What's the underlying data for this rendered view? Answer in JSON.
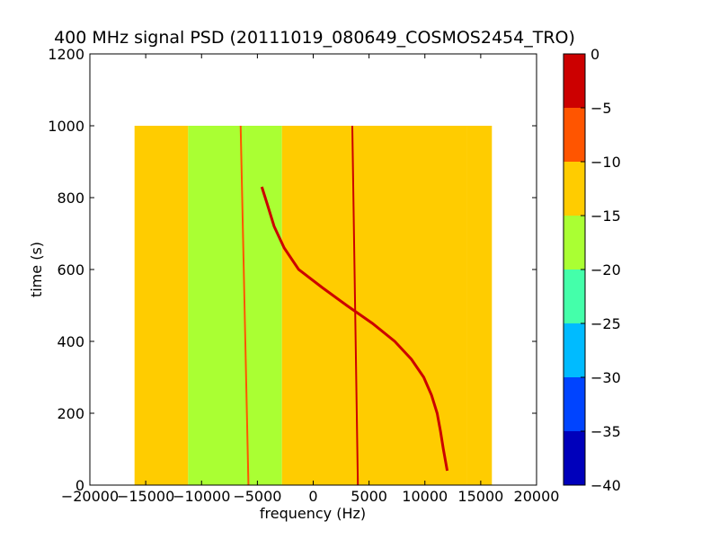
{
  "chart_data": {
    "type": "heatmap",
    "title": "400 MHz signal PSD (20111019_080649_COSMOS2454_TRO)",
    "xlabel": "frequency (Hz)",
    "ylabel": "time (s)",
    "xlim": [
      -20000,
      20000
    ],
    "ylim": [
      0,
      1200
    ],
    "x_ticks": [
      -20000,
      -15000,
      -10000,
      -5000,
      0,
      5000,
      10000,
      15000,
      20000
    ],
    "x_tick_labels": [
      "−20000",
      "−15000",
      "−10000",
      "−5000",
      "0",
      "5000",
      "10000",
      "15000",
      "20000"
    ],
    "y_ticks": [
      0,
      200,
      400,
      600,
      800,
      1000,
      1200
    ],
    "y_tick_labels": [
      "0",
      "200",
      "400",
      "600",
      "800",
      "1000",
      "1200"
    ],
    "data_extent": {
      "x": [
        -16000,
        16000
      ],
      "t": [
        0,
        1000
      ]
    },
    "bands": [
      {
        "x0": -16000,
        "x1": -11200,
        "value": -12.5
      },
      {
        "x0": -11200,
        "x1": -6000,
        "value": -17.5
      },
      {
        "x0": -6000,
        "x1": -2800,
        "value": -16
      },
      {
        "x0": -2800,
        "x1": 13800,
        "value": -12.5
      },
      {
        "x0": 13800,
        "x1": 16000,
        "value": -12.5
      }
    ],
    "constant_lines": [
      {
        "x_top": -6500,
        "x_bottom": -5800,
        "value": -8
      },
      {
        "x_top": 3500,
        "x_bottom": 4000,
        "value": -3
      }
    ],
    "doppler_track": [
      {
        "t": 830,
        "f": -4600
      },
      {
        "t": 780,
        "f": -4100
      },
      {
        "t": 720,
        "f": -3500
      },
      {
        "t": 660,
        "f": -2600
      },
      {
        "t": 600,
        "f": -1300
      },
      {
        "t": 550,
        "f": 800
      },
      {
        "t": 500,
        "f": 3000
      },
      {
        "t": 450,
        "f": 5300
      },
      {
        "t": 400,
        "f": 7300
      },
      {
        "t": 350,
        "f": 8800
      },
      {
        "t": 300,
        "f": 9900
      },
      {
        "t": 250,
        "f": 10600
      },
      {
        "t": 200,
        "f": 11100
      },
      {
        "t": 150,
        "f": 11400
      },
      {
        "t": 100,
        "f": 11650
      },
      {
        "t": 40,
        "f": 12000
      }
    ],
    "colorbar": {
      "ticks": [
        "0",
        "−5",
        "−10",
        "−15",
        "−20",
        "−25",
        "−30",
        "−35",
        "−40"
      ],
      "levels": [
        {
          "from": -5,
          "to": 0,
          "color": "#cc0000"
        },
        {
          "from": -10,
          "to": -5,
          "color": "#ff5500"
        },
        {
          "from": -15,
          "to": -10,
          "color": "#ffcc00"
        },
        {
          "from": -20,
          "to": -15,
          "color": "#aaff33"
        },
        {
          "from": -25,
          "to": -20,
          "color": "#44ffaa"
        },
        {
          "from": -30,
          "to": -25,
          "color": "#00bbff"
        },
        {
          "from": -35,
          "to": -30,
          "color": "#0044ff"
        },
        {
          "from": -40,
          "to": -35,
          "color": "#0000bb"
        }
      ]
    }
  }
}
